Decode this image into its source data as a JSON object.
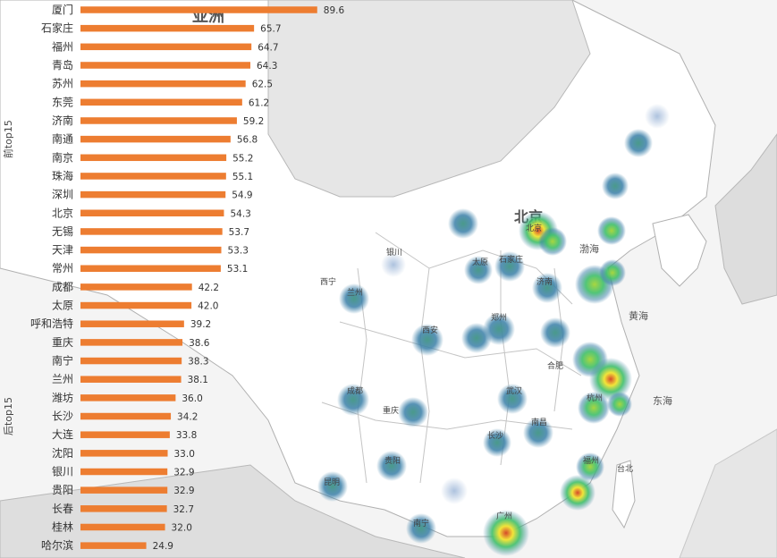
{
  "chart_data": {
    "type": "bar",
    "orientation": "horizontal",
    "bar_color": "#ed7d31",
    "groups": [
      {
        "label": "前top15",
        "start": 0,
        "end": 14
      },
      {
        "label": "后top15",
        "start": 15,
        "end": 29
      }
    ],
    "categories": [
      "厦门",
      "石家庄",
      "福州",
      "青岛",
      "苏州",
      "东莞",
      "济南",
      "南通",
      "南京",
      "珠海",
      "深圳",
      "北京",
      "无锡",
      "天津",
      "常州",
      "成都",
      "太原",
      "呼和浩特",
      "重庆",
      "南宁",
      "兰州",
      "潍坊",
      "长沙",
      "大连",
      "沈阳",
      "银川",
      "贵阳",
      "长春",
      "桂林",
      "哈尔滨"
    ],
    "values": [
      89.6,
      65.7,
      64.7,
      64.3,
      62.5,
      61.2,
      59.2,
      56.8,
      55.2,
      55.1,
      54.9,
      54.3,
      53.7,
      53.3,
      53.1,
      42.2,
      42.0,
      39.2,
      38.6,
      38.3,
      38.1,
      36.0,
      34.2,
      33.8,
      33.0,
      32.9,
      32.9,
      32.7,
      32.0,
      24.9
    ],
    "value_labels": [
      "89.6",
      "65.7",
      "64.7",
      "64.3",
      "62.5",
      "61.2",
      "59.2",
      "56.8",
      "55.2",
      "55.1",
      "54.9",
      "54.3",
      "53.7",
      "53.3",
      "53.1",
      "42.2",
      "42.0",
      "39.2",
      "38.6",
      "38.3",
      "38.1",
      "36.0",
      "34.2",
      "33.8",
      "33.0",
      "32.9",
      "32.9",
      "32.7",
      "32.0",
      "24.9"
    ],
    "xlim": [
      0,
      100
    ]
  },
  "map": {
    "background_color": "#f4f4f4",
    "land_color": "#ffffff",
    "border_color": "#b0b0b0",
    "region_labels": [
      "亚洲",
      "北京",
      "渤海",
      "黄海",
      "东海"
    ],
    "city_labels": [
      "北京",
      "太原",
      "石家庄",
      "济南",
      "西安",
      "郑州",
      "银川",
      "西宁",
      "兰州",
      "成都",
      "重庆",
      "贵阳",
      "昆明",
      "南宁",
      "长沙",
      "南昌",
      "武汉",
      "合肥",
      "杭州",
      "福州",
      "台北",
      "广州"
    ],
    "heat_colors": {
      "low": "#3a7fa8",
      "mid": "#3fbf6a",
      "high": "#f2e43a",
      "peak": "#d64a2a"
    }
  }
}
